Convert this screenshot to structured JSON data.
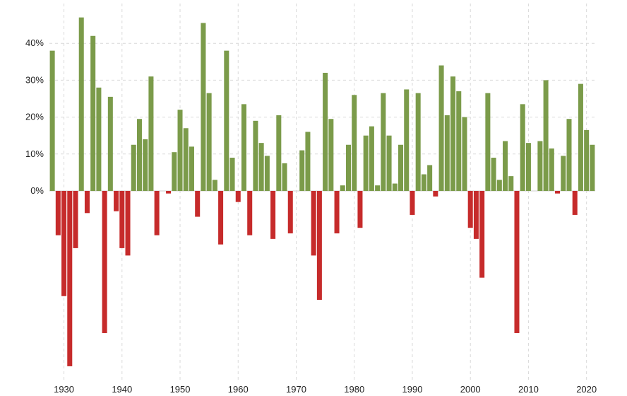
{
  "chart_data": {
    "type": "bar",
    "title": "",
    "xlabel": "",
    "ylabel": "",
    "years": [
      1928,
      1929,
      1930,
      1931,
      1932,
      1933,
      1934,
      1935,
      1936,
      1937,
      1938,
      1939,
      1940,
      1941,
      1942,
      1943,
      1944,
      1945,
      1946,
      1947,
      1948,
      1949,
      1950,
      1951,
      1952,
      1953,
      1954,
      1955,
      1956,
      1957,
      1958,
      1959,
      1960,
      1961,
      1962,
      1963,
      1964,
      1965,
      1966,
      1967,
      1968,
      1969,
      1970,
      1971,
      1972,
      1973,
      1974,
      1975,
      1976,
      1977,
      1978,
      1979,
      1980,
      1981,
      1982,
      1983,
      1984,
      1985,
      1986,
      1987,
      1988,
      1989,
      1990,
      1991,
      1992,
      1993,
      1994,
      1995,
      1996,
      1997,
      1998,
      1999,
      2000,
      2001,
      2002,
      2003,
      2004,
      2005,
      2006,
      2007,
      2008,
      2009,
      2010,
      2011,
      2012,
      2013,
      2014,
      2015,
      2016,
      2017,
      2018,
      2019,
      2020,
      2021
    ],
    "values": [
      38.0,
      -12.0,
      -28.5,
      -47.5,
      -15.5,
      47.0,
      -6.0,
      42.0,
      28.0,
      -38.5,
      25.5,
      -5.5,
      -15.5,
      -17.5,
      12.5,
      19.5,
      14.0,
      31.0,
      -12.0,
      0.0,
      -0.7,
      10.5,
      22.0,
      17.0,
      12.0,
      -7.0,
      45.5,
      26.5,
      3.0,
      -14.5,
      38.0,
      9.0,
      -3.0,
      23.5,
      -12.0,
      19.0,
      13.0,
      9.5,
      -13.0,
      20.5,
      7.5,
      -11.5,
      0.0,
      11.0,
      16.0,
      -17.5,
      -29.5,
      32.0,
      19.5,
      -11.5,
      1.5,
      12.5,
      26.0,
      -10.0,
      15.0,
      17.5,
      1.5,
      26.5,
      15.0,
      2.0,
      12.5,
      27.5,
      -6.5,
      26.5,
      4.5,
      7.0,
      -1.5,
      34.0,
      20.5,
      31.0,
      27.0,
      20.0,
      -10.0,
      -13.0,
      -23.5,
      26.5,
      9.0,
      3.0,
      13.5,
      4.0,
      -38.5,
      23.5,
      13.0,
      0.0,
      13.5,
      30.0,
      11.5,
      -0.7,
      9.5,
      19.5,
      -6.5,
      29.0,
      16.5,
      12.5
    ],
    "y_ticks": [
      {
        "value": 0,
        "label": "0%"
      },
      {
        "value": 10,
        "label": "10%"
      },
      {
        "value": 20,
        "label": "20%"
      },
      {
        "value": 30,
        "label": "30%"
      },
      {
        "value": 40,
        "label": "40%"
      }
    ],
    "x_ticks": [
      {
        "year": 1930,
        "label": "1930"
      },
      {
        "year": 1940,
        "label": "1940"
      },
      {
        "year": 1950,
        "label": "1950"
      },
      {
        "year": 1960,
        "label": "1960"
      },
      {
        "year": 1970,
        "label": "1970"
      },
      {
        "year": 1980,
        "label": "1980"
      },
      {
        "year": 1990,
        "label": "1990"
      },
      {
        "year": 2000,
        "label": "2000"
      },
      {
        "year": 2010,
        "label": "2010"
      },
      {
        "year": 2020,
        "label": "2020"
      }
    ],
    "ylim": [
      -50,
      50
    ],
    "grid": true,
    "colors": {
      "positive": "#7b9b4a",
      "negative": "#c62b2b"
    }
  }
}
